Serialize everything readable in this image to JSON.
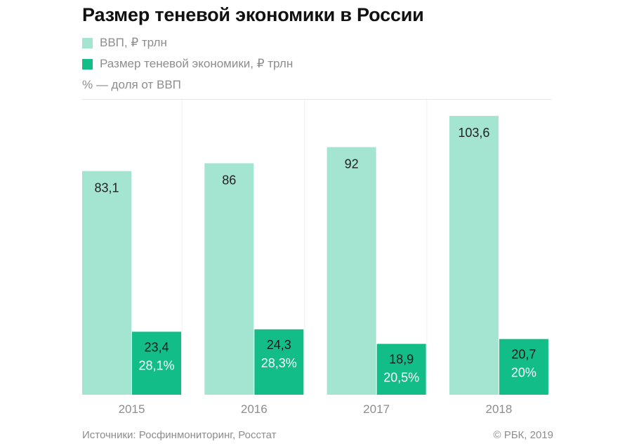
{
  "title": "Размер теневой экономики в России",
  "legend": [
    {
      "label": "ВВП, ₽ трлн",
      "color": "#a3e5d1"
    },
    {
      "label": "Размер теневой экономики, ₽ трлн",
      "color": "#13bd88"
    },
    {
      "label": "% — доля от ВВП",
      "color": null
    }
  ],
  "footer": {
    "source": "Источники: Росфинмониторинг, Росстат",
    "copyright": "© РБК, 2019"
  },
  "chart_data": {
    "type": "bar",
    "categories": [
      "2015",
      "2016",
      "2017",
      "2018"
    ],
    "series": [
      {
        "name": "ВВП, ₽ трлн",
        "color": "#a3e5d1",
        "values": [
          83.1,
          86,
          92,
          103.6
        ],
        "labels": [
          "83,1",
          "86",
          "92",
          "103,6"
        ]
      },
      {
        "name": "Размер теневой экономики, ₽ трлн",
        "color": "#13bd88",
        "values": [
          23.4,
          24.3,
          18.9,
          20.7
        ],
        "labels": [
          "23,4",
          "24,3",
          "18,9",
          "20,7"
        ],
        "share_labels": [
          "28,1%",
          "28,3%",
          "20,5%",
          "20%"
        ]
      }
    ],
    "ylim": [
      0,
      103.6
    ],
    "grid": false,
    "legend_position": "top-left"
  }
}
